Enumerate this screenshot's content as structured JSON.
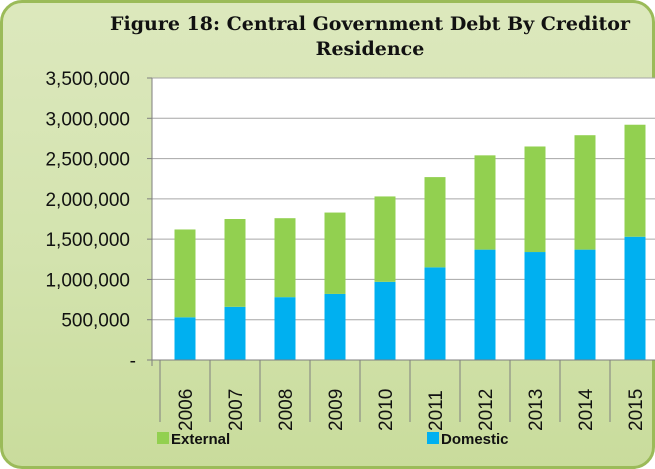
{
  "chart_data": {
    "type": "bar",
    "stacked": true,
    "title": "Figure 18: Central Government Debt By Creditor Residence",
    "categories": [
      "2006",
      "2007",
      "2008",
      "2009",
      "2010",
      "2011",
      "2012",
      "2013",
      "2014",
      "2015"
    ],
    "series": [
      {
        "name": "Domestic",
        "color": "#00b0f0",
        "values": [
          530000,
          660000,
          780000,
          820000,
          970000,
          1150000,
          1370000,
          1340000,
          1370000,
          1530000
        ]
      },
      {
        "name": "External",
        "color": "#92d050",
        "values": [
          1090000,
          1090000,
          980000,
          1010000,
          1060000,
          1120000,
          1170000,
          1310000,
          1420000,
          1390000
        ]
      }
    ],
    "yticks": [
      "-",
      "500,000",
      "1,000,000",
      "1,500,000",
      "2,000,000",
      "2,500,000",
      "3,000,000",
      "3,500,000"
    ],
    "ylim": [
      0,
      3500000
    ],
    "grid": true,
    "legend": {
      "position": "bottom",
      "entries": [
        {
          "label": "External",
          "color": "#92d050"
        },
        {
          "label": "Domestic",
          "color": "#00b0f0"
        }
      ]
    }
  }
}
